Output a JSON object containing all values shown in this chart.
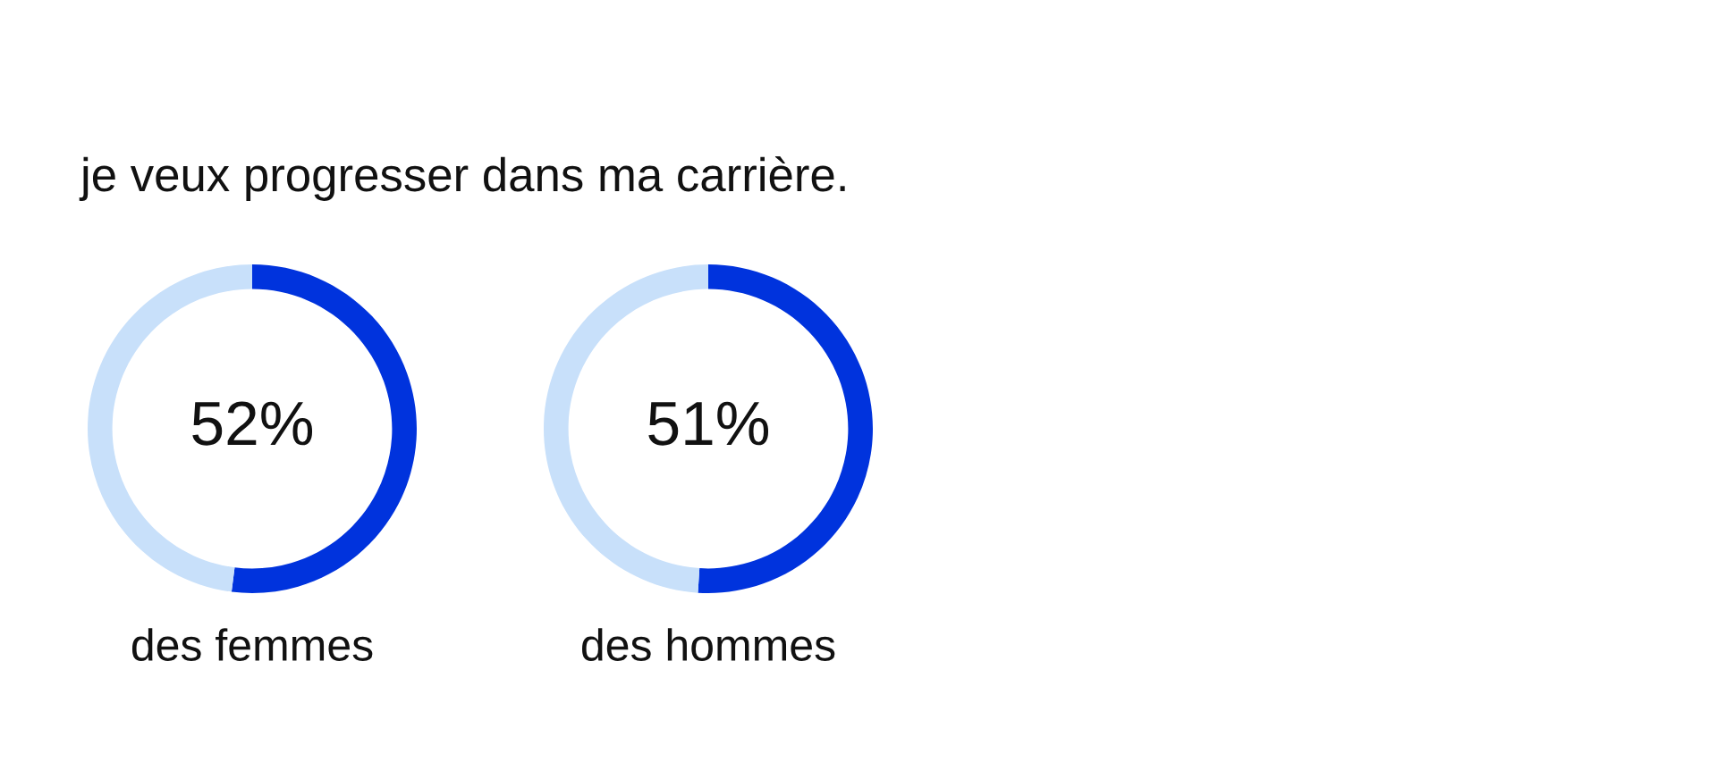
{
  "chart_data": [
    {
      "type": "donut",
      "title": "je veux progresser dans ma carrière.",
      "categories": [
        null,
        null
      ],
      "values": [
        52,
        48
      ],
      "colors": [
        "#0033dd",
        "#c8e0fa"
      ],
      "value_labels": [
        "52%",
        null
      ],
      "xlabel": "des femmes"
    },
    {
      "type": "donut",
      "categories": [
        null,
        null
      ],
      "values": [
        51,
        49
      ],
      "colors": [
        "#0033dd",
        "#c8e0fa"
      ],
      "value_labels": [
        "51%",
        null
      ],
      "xlabel": "des hommes"
    }
  ]
}
